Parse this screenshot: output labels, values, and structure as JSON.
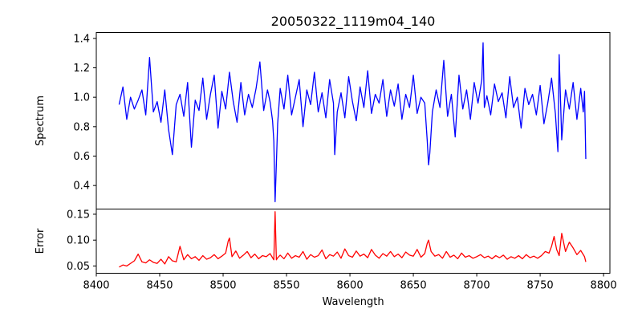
{
  "chart_data": [
    {
      "type": "line",
      "panel": "top",
      "title": "20050322_1119m04_140",
      "xlabel": "",
      "ylabel": "Spectrum",
      "xlim": [
        8400,
        8805
      ],
      "ylim": [
        0.24,
        1.44
      ],
      "yticks": [
        0.4,
        0.6,
        0.8,
        1.0,
        1.2,
        1.4
      ],
      "ytick_labels": [
        "0.4",
        "0.6",
        "0.8",
        "1.0",
        "1.2",
        "1.4"
      ],
      "grid": false,
      "series": [
        {
          "color": "#0000ff",
          "x": [
            8418,
            8421,
            8424,
            8427,
            8430,
            8433,
            8436,
            8439,
            8442,
            8445,
            8448,
            8451,
            8454,
            8457,
            8460,
            8463,
            8466,
            8469,
            8472,
            8475,
            8478,
            8481,
            8484,
            8487,
            8490,
            8493,
            8496,
            8499,
            8502,
            8505,
            8508,
            8511,
            8514,
            8517,
            8520,
            8523,
            8526,
            8529,
            8532,
            8535,
            8537,
            8539,
            8540,
            8541,
            8542,
            8543,
            8545,
            8548,
            8551,
            8554,
            8557,
            8560,
            8563,
            8566,
            8569,
            8572,
            8575,
            8578,
            8581,
            8584,
            8587,
            8588,
            8590,
            8593,
            8596,
            8599,
            8602,
            8605,
            8608,
            8611,
            8614,
            8617,
            8620,
            8623,
            8626,
            8629,
            8632,
            8635,
            8638,
            8641,
            8644,
            8647,
            8650,
            8653,
            8656,
            8659,
            8661,
            8662,
            8663,
            8665,
            8668,
            8671,
            8674,
            8677,
            8680,
            8683,
            8686,
            8689,
            8692,
            8695,
            8698,
            8701,
            8704,
            8705,
            8706,
            8708,
            8711,
            8714,
            8717,
            8720,
            8723,
            8726,
            8729,
            8732,
            8735,
            8738,
            8741,
            8744,
            8747,
            8750,
            8753,
            8756,
            8759,
            8762,
            8764,
            8765,
            8767,
            8770,
            8773,
            8776,
            8779,
            8782,
            8784,
            8785,
            8786
          ],
          "y": [
            0.95,
            1.07,
            0.85,
            1.0,
            0.92,
            0.98,
            1.05,
            0.88,
            1.27,
            0.9,
            0.97,
            0.83,
            1.05,
            0.78,
            0.61,
            0.95,
            1.02,
            0.87,
            1.1,
            0.66,
            0.98,
            0.91,
            1.13,
            0.85,
            1.02,
            1.15,
            0.79,
            1.04,
            0.92,
            1.17,
            0.97,
            0.83,
            1.1,
            0.88,
            1.02,
            0.93,
            1.06,
            1.24,
            0.91,
            1.05,
            0.97,
            0.84,
            0.7,
            0.29,
            0.55,
            0.82,
            1.06,
            0.92,
            1.15,
            0.88,
            1.0,
            1.12,
            0.8,
            1.05,
            0.95,
            1.17,
            0.9,
            1.03,
            0.86,
            1.12,
            0.96,
            0.61,
            0.9,
            1.03,
            0.86,
            1.14,
            0.97,
            0.84,
            1.07,
            0.93,
            1.18,
            0.89,
            1.02,
            0.96,
            1.12,
            0.87,
            1.05,
            0.94,
            1.09,
            0.85,
            1.02,
            0.93,
            1.15,
            0.89,
            1.0,
            0.96,
            0.7,
            0.54,
            0.62,
            0.9,
            1.05,
            0.93,
            1.25,
            0.87,
            1.02,
            0.73,
            1.15,
            0.92,
            1.05,
            0.85,
            1.1,
            0.96,
            1.12,
            1.37,
            0.93,
            1.01,
            0.88,
            1.09,
            0.97,
            1.03,
            0.86,
            1.14,
            0.93,
            1.0,
            0.79,
            1.06,
            0.95,
            1.02,
            0.88,
            1.08,
            0.82,
            0.96,
            1.13,
            0.89,
            0.63,
            1.29,
            0.71,
            1.05,
            0.92,
            1.1,
            0.85,
            1.06,
            0.9,
            1.04,
            0.58
          ]
        }
      ]
    },
    {
      "type": "line",
      "panel": "bottom",
      "title": "",
      "xlabel": "Wavelength",
      "ylabel": "Error",
      "xlim": [
        8400,
        8805
      ],
      "ylim": [
        0.036,
        0.16
      ],
      "xticks": [
        8400,
        8450,
        8500,
        8550,
        8600,
        8650,
        8700,
        8750,
        8800
      ],
      "xtick_labels": [
        "8400",
        "8450",
        "8500",
        "8550",
        "8600",
        "8650",
        "8700",
        "8750",
        "8800"
      ],
      "yticks": [
        0.05,
        0.1,
        0.15
      ],
      "ytick_labels": [
        "0.05",
        "0.10",
        "0.15"
      ],
      "grid": false,
      "series": [
        {
          "color": "#ff0000",
          "x": [
            8418,
            8421,
            8424,
            8427,
            8430,
            8433,
            8436,
            8439,
            8442,
            8445,
            8448,
            8451,
            8454,
            8457,
            8460,
            8463,
            8466,
            8469,
            8472,
            8475,
            8478,
            8481,
            8484,
            8487,
            8490,
            8493,
            8496,
            8499,
            8502,
            8504,
            8505,
            8507,
            8510,
            8513,
            8516,
            8519,
            8522,
            8525,
            8528,
            8531,
            8534,
            8537,
            8540,
            8541,
            8542,
            8543,
            8545,
            8548,
            8551,
            8554,
            8557,
            8560,
            8563,
            8566,
            8569,
            8572,
            8575,
            8578,
            8581,
            8584,
            8587,
            8590,
            8593,
            8596,
            8599,
            8602,
            8605,
            8608,
            8611,
            8614,
            8617,
            8620,
            8623,
            8626,
            8629,
            8632,
            8635,
            8638,
            8641,
            8644,
            8647,
            8650,
            8653,
            8656,
            8659,
            8661,
            8662,
            8664,
            8667,
            8670,
            8673,
            8676,
            8679,
            8682,
            8685,
            8688,
            8691,
            8694,
            8697,
            8700,
            8703,
            8706,
            8709,
            8712,
            8715,
            8718,
            8721,
            8724,
            8727,
            8730,
            8733,
            8736,
            8739,
            8742,
            8745,
            8748,
            8751,
            8754,
            8757,
            8759,
            8761,
            8763,
            8765,
            8767,
            8770,
            8773,
            8776,
            8779,
            8782,
            8785,
            8786
          ],
          "y": [
            0.048,
            0.052,
            0.05,
            0.055,
            0.06,
            0.073,
            0.058,
            0.056,
            0.062,
            0.057,
            0.055,
            0.063,
            0.054,
            0.068,
            0.06,
            0.058,
            0.088,
            0.062,
            0.072,
            0.064,
            0.068,
            0.061,
            0.07,
            0.063,
            0.066,
            0.072,
            0.064,
            0.069,
            0.075,
            0.098,
            0.104,
            0.068,
            0.079,
            0.065,
            0.071,
            0.078,
            0.066,
            0.073,
            0.064,
            0.07,
            0.068,
            0.074,
            0.062,
            0.155,
            0.062,
            0.066,
            0.071,
            0.064,
            0.075,
            0.065,
            0.07,
            0.067,
            0.078,
            0.063,
            0.072,
            0.067,
            0.07,
            0.081,
            0.064,
            0.072,
            0.069,
            0.077,
            0.065,
            0.083,
            0.07,
            0.067,
            0.079,
            0.069,
            0.073,
            0.066,
            0.082,
            0.071,
            0.065,
            0.074,
            0.069,
            0.078,
            0.068,
            0.073,
            0.066,
            0.077,
            0.071,
            0.069,
            0.082,
            0.067,
            0.074,
            0.094,
            0.1,
            0.078,
            0.069,
            0.072,
            0.065,
            0.078,
            0.067,
            0.071,
            0.064,
            0.075,
            0.067,
            0.07,
            0.065,
            0.068,
            0.072,
            0.066,
            0.069,
            0.064,
            0.07,
            0.066,
            0.071,
            0.063,
            0.068,
            0.065,
            0.07,
            0.064,
            0.072,
            0.066,
            0.069,
            0.065,
            0.07,
            0.078,
            0.075,
            0.088,
            0.107,
            0.082,
            0.07,
            0.113,
            0.078,
            0.096,
            0.085,
            0.072,
            0.08,
            0.068,
            0.058
          ]
        }
      ]
    }
  ]
}
